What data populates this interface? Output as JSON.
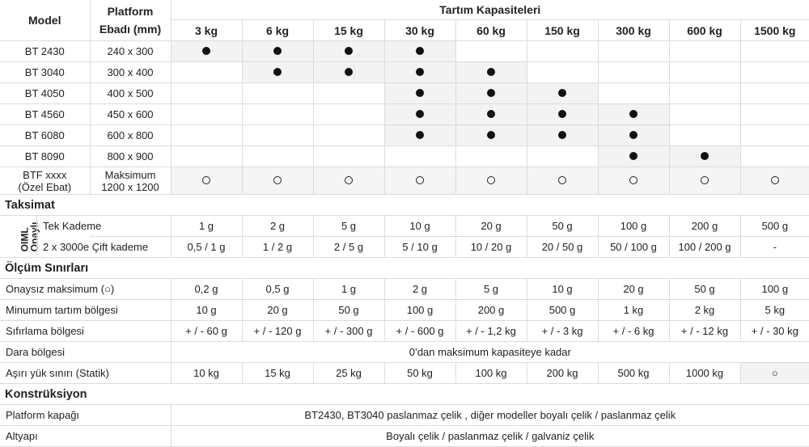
{
  "header": {
    "model": "Model",
    "platform_line1": "Platform",
    "platform_line2": "Ebadı (mm)",
    "capacities_title": "Tartım Kapasiteleri",
    "capacities": [
      "3 kg",
      "6 kg",
      "15 kg",
      "30 kg",
      "60 kg",
      "150 kg",
      "300 kg",
      "600 kg",
      "1500 kg"
    ]
  },
  "models": [
    {
      "model": "BT 2430",
      "size": "240 x 300",
      "marks": [
        "filled",
        "filled",
        "filled",
        "filled",
        "",
        "",
        "",
        "",
        ""
      ]
    },
    {
      "model": "BT 3040",
      "size": "300 x 400",
      "marks": [
        "",
        "filled",
        "filled",
        "filled",
        "filled",
        "",
        "",
        "",
        ""
      ]
    },
    {
      "model": "BT 4050",
      "size": "400 x 500",
      "marks": [
        "",
        "",
        "",
        "filled",
        "filled",
        "filled",
        "",
        "",
        ""
      ]
    },
    {
      "model": "BT 4560",
      "size": "450 x 600",
      "marks": [
        "",
        "",
        "",
        "filled",
        "filled",
        "filled",
        "filled",
        "",
        ""
      ]
    },
    {
      "model": "BT 6080",
      "size": "600 x 800",
      "marks": [
        "",
        "",
        "",
        "filled",
        "filled",
        "filled",
        "filled",
        "",
        ""
      ]
    },
    {
      "model": "BT 8090",
      "size": "800 x 900",
      "marks": [
        "",
        "",
        "",
        "",
        "",
        "",
        "filled",
        "filled",
        ""
      ]
    }
  ],
  "custom": {
    "model_line1": "BTF xxxx",
    "model_line2": "(Özel Ebat)",
    "size_line1": "Maksimum",
    "size_line2": "1200 x 1200",
    "marks": [
      "open",
      "open",
      "open",
      "open",
      "open",
      "open",
      "open",
      "open",
      "open"
    ]
  },
  "taksimat": {
    "title": "Taksimat",
    "oiml_line1": "OIML",
    "oiml_line2": "Onaylı",
    "rows": [
      {
        "label": "Tek Kademe",
        "values": [
          "1 g",
          "2 g",
          "5 g",
          "10 g",
          "20 g",
          "50 g",
          "100 g",
          "200 g",
          "500 g"
        ]
      },
      {
        "label": "2 x 3000e Çift kademe",
        "values": [
          "0,5 / 1 g",
          "1 / 2 g",
          "2 / 5 g",
          "5 / 10 g",
          "10 / 20 g",
          "20 / 50 g",
          "50 / 100 g",
          "100 / 200 g",
          "-"
        ]
      }
    ]
  },
  "olcum": {
    "title": "Ölçüm Sınırları",
    "rows": [
      {
        "label": "Onaysız maksimum (○)",
        "values": [
          "0,2 g",
          "0,5 g",
          "1 g",
          "2 g",
          "5 g",
          "10 g",
          "20 g",
          "50 g",
          "100 g"
        ]
      },
      {
        "label": "Minumum tartım bölgesi",
        "values": [
          "10 g",
          "20 g",
          "50 g",
          "100 g",
          "200 g",
          "500 g",
          "1 kg",
          "2 kg",
          "5 kg"
        ]
      },
      {
        "label": "Sıfırlama bölgesi",
        "values": [
          "+ / - 60 g",
          "+ / - 120 g",
          "+ / - 300 g",
          "+ / - 600 g",
          "+ / - 1,2 kg",
          "+ / - 3 kg",
          "+ / - 6 kg",
          "+ / - 12 kg",
          "+ / - 30 kg"
        ]
      }
    ],
    "dara": {
      "label": "Dara bölgesi",
      "value": "0’dan maksimum kapasiteye kadar"
    },
    "asiri": {
      "label": "Aşırı yük sınırı (Statik)",
      "values": [
        "10 kg",
        "15 kg",
        "25 kg",
        "50 kg",
        "100 kg",
        "200 kg",
        "500 kg",
        "1000 kg",
        "○"
      ]
    }
  },
  "konstruksiyon": {
    "title": "Konstrüksiyon",
    "rows": [
      {
        "label": "Platform kapağı",
        "value": "BT2430, BT3040 paslanmaz çelik , diğer modeller boyalı çelik / paslanmaz çelik"
      },
      {
        "label": "Altyapı",
        "value": "Boyalı çelik / paslanmaz çelik / galvaniz çelik"
      }
    ]
  }
}
